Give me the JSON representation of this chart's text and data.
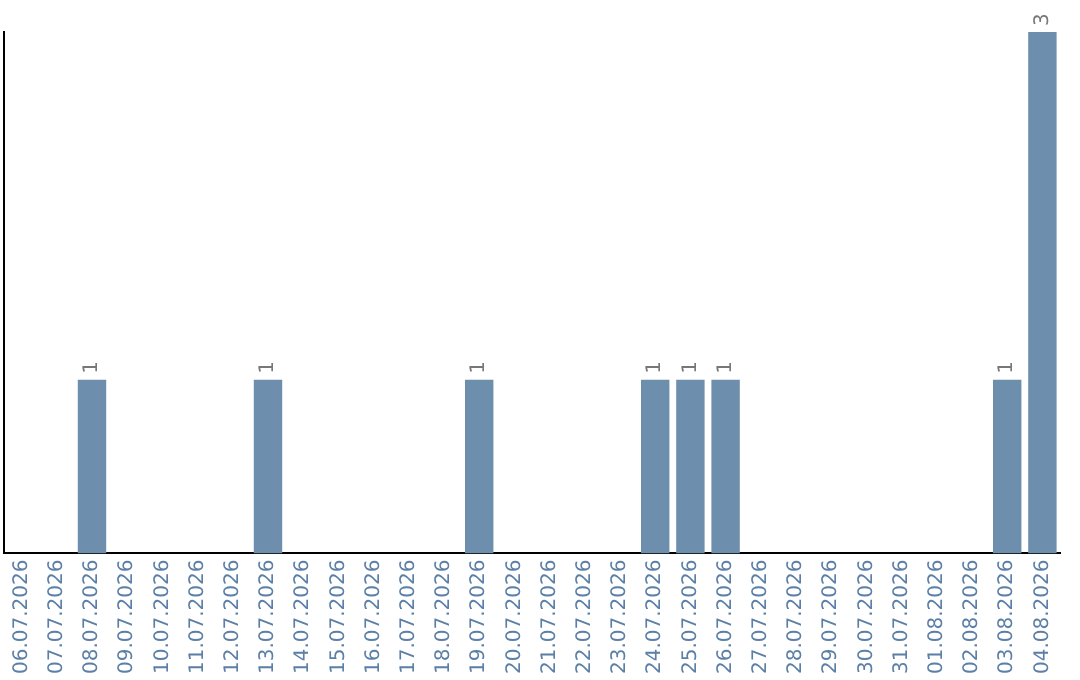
{
  "chart_data": {
    "type": "bar",
    "categories": [
      "06.07.2026",
      "07.07.2026",
      "08.07.2026",
      "09.07.2026",
      "10.07.2026",
      "11.07.2026",
      "12.07.2026",
      "13.07.2026",
      "14.07.2026",
      "15.07.2026",
      "16.07.2026",
      "17.07.2026",
      "18.07.2026",
      "19.07.2026",
      "20.07.2026",
      "21.07.2026",
      "22.07.2026",
      "23.07.2026",
      "24.07.2026",
      "25.07.2026",
      "26.07.2026",
      "27.07.2026",
      "28.07.2026",
      "29.07.2026",
      "30.07.2026",
      "31.07.2026",
      "01.08.2026",
      "02.08.2026",
      "03.08.2026",
      "04.08.2026"
    ],
    "values": [
      0,
      0,
      1,
      0,
      0,
      0,
      0,
      1,
      0,
      0,
      0,
      0,
      0,
      1,
      0,
      0,
      0,
      0,
      1,
      1,
      1,
      0,
      0,
      0,
      0,
      0,
      0,
      0,
      1,
      3
    ],
    "value_labels": [
      null,
      null,
      "1",
      null,
      null,
      null,
      null,
      "1",
      null,
      null,
      null,
      null,
      null,
      "1",
      null,
      null,
      null,
      null,
      "1",
      "1",
      "1",
      null,
      null,
      null,
      null,
      null,
      null,
      null,
      "1",
      "3"
    ],
    "color": "#6d8fad",
    "tick_labels": "x"
  }
}
